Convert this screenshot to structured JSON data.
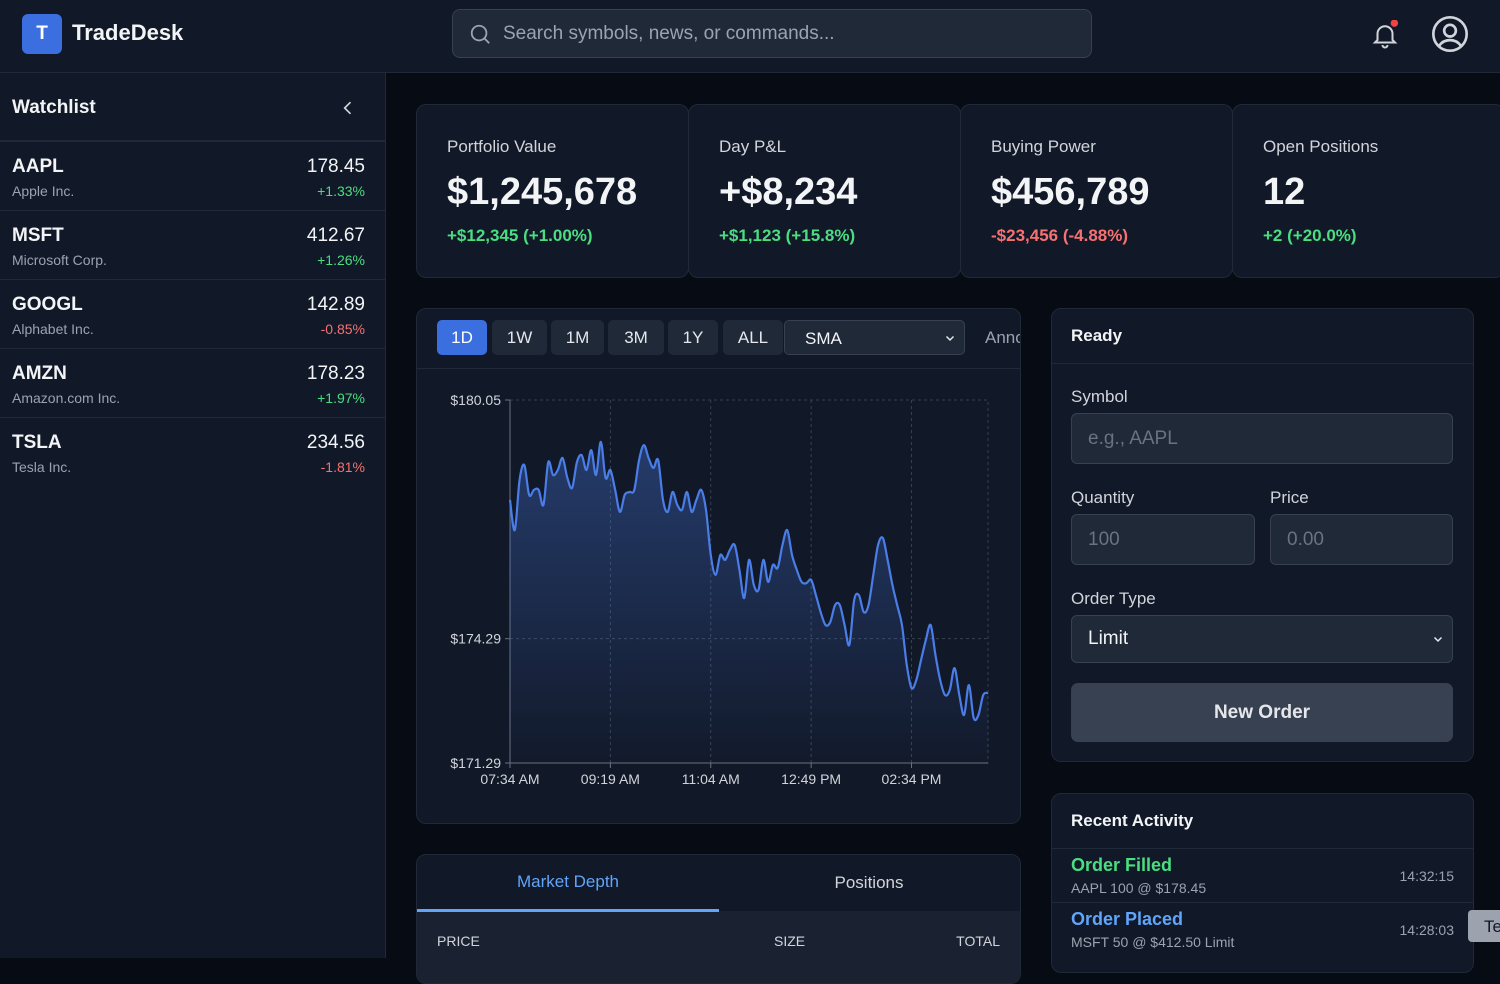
{
  "header": {
    "logo_letter": "T",
    "app_name": "TradeDesk",
    "search_placeholder": "Search symbols, news, or commands..."
  },
  "watchlist": {
    "title": "Watchlist",
    "items": [
      {
        "symbol": "AAPL",
        "name": "Apple Inc.",
        "price": "178.45",
        "change": "+1.33%"
      },
      {
        "symbol": "MSFT",
        "name": "Microsoft Corp.",
        "price": "412.67",
        "change": "+1.26%"
      },
      {
        "symbol": "GOOGL",
        "name": "Alphabet Inc.",
        "price": "142.89",
        "change": "-0.85%"
      },
      {
        "symbol": "AMZN",
        "name": "Amazon.com Inc.",
        "price": "178.23",
        "change": "+1.97%"
      },
      {
        "symbol": "TSLA",
        "name": "Tesla Inc.",
        "price": "234.56",
        "change": "-1.81%"
      }
    ]
  },
  "stats": [
    {
      "label": "Portfolio Value",
      "value": "$1,245,678",
      "change": "+$12,345 (+1.00%)"
    },
    {
      "label": "Day P&L",
      "value": "+$8,234",
      "change": "+$1,123 (+15.8%)"
    },
    {
      "label": "Buying Power",
      "value": "$456,789",
      "change": "-$23,456 (-4.88%)"
    },
    {
      "label": "Open Positions",
      "value": "12",
      "change": "+2 (+20.0%)"
    }
  ],
  "chart_toolbar": {
    "ranges": [
      "1D",
      "1W",
      "1M",
      "3M",
      "1Y",
      "ALL"
    ],
    "indicator": "SMA",
    "annotate": "Anno"
  },
  "chart_data": {
    "type": "line",
    "color": "#4a7de8",
    "grid": true,
    "categories": [
      "07:34 AM",
      null,
      null,
      null,
      null,
      null,
      null,
      null,
      null,
      null,
      null,
      null,
      null,
      null,
      null,
      null,
      null,
      null,
      null,
      null,
      null,
      "09:19 AM",
      null,
      null,
      null,
      null,
      null,
      null,
      null,
      null,
      null,
      null,
      null,
      null,
      null,
      null,
      null,
      null,
      null,
      null,
      null,
      null,
      "11:04 AM",
      null,
      null,
      null,
      null,
      null,
      null,
      null,
      null,
      null,
      null,
      null,
      null,
      null,
      null,
      null,
      null,
      null,
      null,
      null,
      null,
      "12:49 PM",
      null,
      null,
      null,
      null,
      null,
      null,
      null,
      null,
      null,
      null,
      null,
      null,
      null,
      null,
      null,
      null,
      null,
      null,
      null,
      null,
      "02:34 PM",
      null,
      null,
      null,
      null,
      null,
      null,
      null,
      null,
      null,
      null,
      null,
      null,
      null,
      null,
      null,
      null
    ],
    "values": [
      177.64,
      176.91,
      178.12,
      178.48,
      177.76,
      177.88,
      177.88,
      177.52,
      178.55,
      178.24,
      178.36,
      178.65,
      178.17,
      177.93,
      178.55,
      178.72,
      178.36,
      178.84,
      178.24,
      179.04,
      178.17,
      178.36,
      177.88,
      177.35,
      177.76,
      177.83,
      177.88,
      178.6,
      178.96,
      178.65,
      178.41,
      178.6,
      177.64,
      177.35,
      177.83,
      177.52,
      177.4,
      177.83,
      177.35,
      177.64,
      177.88,
      177.4,
      176.31,
      175.83,
      176.31,
      176.19,
      176.43,
      176.55,
      175.95,
      175.27,
      176.19,
      175.59,
      175.47,
      176.19,
      175.66,
      176.07,
      176,
      176.55,
      176.91,
      176.31,
      175.95,
      175.66,
      175.63,
      175.71,
      175.34,
      174.93,
      174.62,
      174.69,
      175.1,
      175.1,
      174.62,
      174.14,
      175.22,
      175.34,
      174.93,
      175.1,
      175.83,
      176.55,
      176.72,
      176.19,
      175.59,
      175.1,
      174.62,
      173.66,
      173.1,
      173.29,
      173.78,
      174.26,
      174.62,
      173.9,
      173.29,
      172.93,
      173.05,
      173.58,
      172.93,
      172.45,
      173.17,
      172.38,
      172.45,
      172.93,
      172.98
    ],
    "ylim": [
      171.29,
      180.05
    ],
    "yticks": [
      {
        "value": 171.29,
        "label": "$171.29"
      },
      {
        "value": 174.29,
        "label": "$174.29"
      },
      {
        "value": 180.05,
        "label": "$180.05"
      }
    ]
  },
  "order_panel": {
    "status": "Ready",
    "symbol_label": "Symbol",
    "symbol_placeholder": "e.g., AAPL",
    "quantity_label": "Quantity",
    "quantity_placeholder": "100",
    "price_label": "Price",
    "price_placeholder": "0.00",
    "order_type_label": "Order Type",
    "order_type": "Limit",
    "button": "New Order"
  },
  "recent_activity": {
    "title": "Recent Activity",
    "items": [
      {
        "title": "Order Filled",
        "detail": "AAPL 100 @ $178.45",
        "time": "14:32:15",
        "color": "#4ade80"
      },
      {
        "title": "Order Placed",
        "detail": "MSFT 50 @ $412.50 Limit",
        "time": "14:28:03",
        "color": "#60a5fa"
      }
    ]
  },
  "depth": {
    "tabs": [
      "Market Depth",
      "Positions"
    ],
    "columns": [
      "PRICE",
      "SIZE",
      "TOTAL"
    ]
  },
  "toast": "Te"
}
